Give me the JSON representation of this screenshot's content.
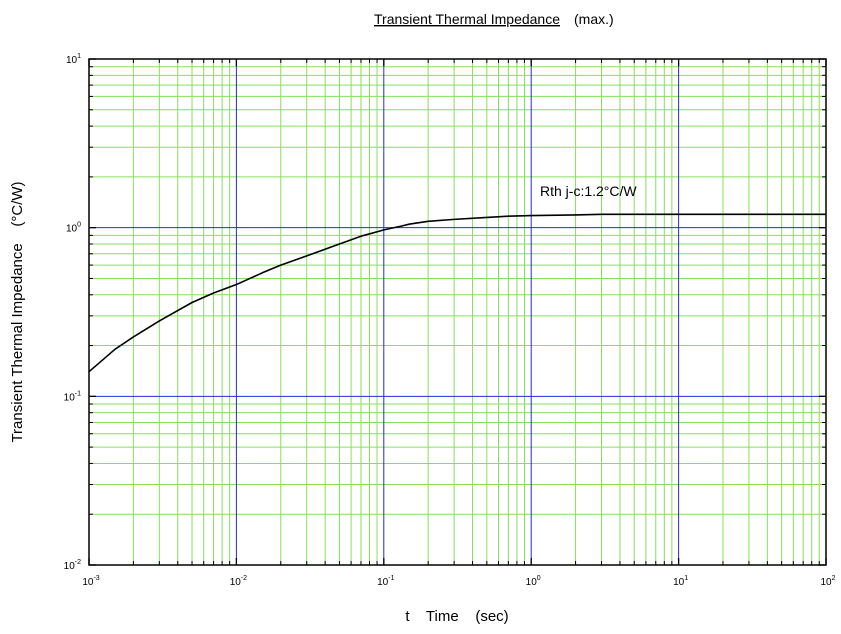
{
  "chart_data": {
    "type": "line",
    "title": "Transient Thermal Impedance",
    "title_suffix": "(max.)",
    "xlabel": "t    Time    (sec)",
    "ylabel": "Transient Thermal Impedance    (°C/W)",
    "xscale": "log",
    "yscale": "log",
    "xlim": [
      0.001,
      100
    ],
    "ylim": [
      0.01,
      10
    ],
    "x_tick_labels": [
      {
        "base": "10",
        "exp": "-3"
      },
      {
        "base": "10",
        "exp": "-2"
      },
      {
        "base": "10",
        "exp": "-1"
      },
      {
        "base": "10",
        "exp": "0"
      },
      {
        "base": "10",
        "exp": "1"
      },
      {
        "base": "10",
        "exp": "2"
      }
    ],
    "y_tick_labels": [
      {
        "base": "10",
        "exp": "1"
      },
      {
        "base": "10",
        "exp": "0"
      },
      {
        "base": "10",
        "exp": "-1"
      },
      {
        "base": "10",
        "exp": "-2"
      }
    ],
    "grid": true,
    "colors": {
      "major_grid": "#1f2fd6",
      "minor_grid": "#86e05c",
      "curve": "#000000",
      "frame": "#000000"
    },
    "annotation": "Rth j-c:1.2°C/W",
    "series": [
      {
        "x": [
          0.001,
          0.0015,
          0.002,
          0.003,
          0.005,
          0.007,
          0.01,
          0.015,
          0.02,
          0.03,
          0.05,
          0.07,
          0.1,
          0.13,
          0.15,
          0.2,
          0.3,
          0.5,
          0.7,
          1,
          2,
          3,
          5,
          10,
          20,
          50,
          100
        ],
        "values": [
          0.14,
          0.19,
          0.225,
          0.28,
          0.36,
          0.41,
          0.46,
          0.54,
          0.6,
          0.68,
          0.8,
          0.89,
          0.97,
          1.02,
          1.05,
          1.09,
          1.12,
          1.15,
          1.17,
          1.18,
          1.19,
          1.2,
          1.2,
          1.2,
          1.2,
          1.2,
          1.2
        ]
      }
    ]
  }
}
